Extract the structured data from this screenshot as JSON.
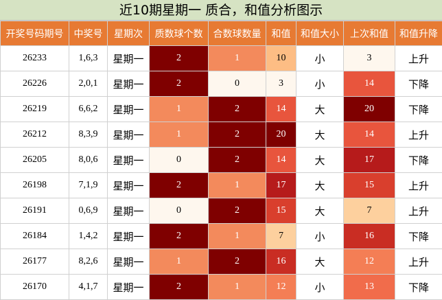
{
  "title": "近10期星期一 质合，和值分析图示",
  "headers": [
    "开奖号码期号",
    "中奖号",
    "星期次",
    "质数球个数",
    "合数球数量",
    "和值",
    "和值大小",
    "上次和值",
    "和值升降"
  ],
  "rows": [
    {
      "issue": "26233",
      "nums": "1,6,3",
      "weekday": "星期一",
      "prime": "2",
      "composite": "1",
      "sum": "10",
      "size": "小",
      "prev_sum": "3",
      "trend": "上升"
    },
    {
      "issue": "26226",
      "nums": "2,0,1",
      "weekday": "星期一",
      "prime": "2",
      "composite": "0",
      "sum": "3",
      "size": "小",
      "prev_sum": "14",
      "trend": "下降"
    },
    {
      "issue": "26219",
      "nums": "6,6,2",
      "weekday": "星期一",
      "prime": "1",
      "composite": "2",
      "sum": "14",
      "size": "大",
      "prev_sum": "20",
      "trend": "下降"
    },
    {
      "issue": "26212",
      "nums": "8,3,9",
      "weekday": "星期一",
      "prime": "1",
      "composite": "2",
      "sum": "20",
      "size": "大",
      "prev_sum": "14",
      "trend": "上升"
    },
    {
      "issue": "26205",
      "nums": "8,0,6",
      "weekday": "星期一",
      "prime": "0",
      "composite": "2",
      "sum": "14",
      "size": "大",
      "prev_sum": "17",
      "trend": "下降"
    },
    {
      "issue": "26198",
      "nums": "7,1,9",
      "weekday": "星期一",
      "prime": "2",
      "composite": "1",
      "sum": "17",
      "size": "大",
      "prev_sum": "15",
      "trend": "上升"
    },
    {
      "issue": "26191",
      "nums": "0,6,9",
      "weekday": "星期一",
      "prime": "0",
      "composite": "2",
      "sum": "15",
      "size": "大",
      "prev_sum": "7",
      "trend": "上升"
    },
    {
      "issue": "26184",
      "nums": "1,4,2",
      "weekday": "星期一",
      "prime": "2",
      "composite": "1",
      "sum": "7",
      "size": "小",
      "prev_sum": "16",
      "trend": "下降"
    },
    {
      "issue": "26177",
      "nums": "8,2,6",
      "weekday": "星期一",
      "prime": "1",
      "composite": "2",
      "sum": "16",
      "size": "大",
      "prev_sum": "12",
      "trend": "上升"
    },
    {
      "issue": "26170",
      "nums": "4,1,7",
      "weekday": "星期一",
      "prime": "2",
      "composite": "1",
      "sum": "12",
      "size": "小",
      "prev_sum": "13",
      "trend": "下降"
    }
  ],
  "colors": {
    "count": {
      "0": "#fef7ee",
      "1": "#f38a5c",
      "2": "#7f0000"
    },
    "sum": {
      "3": "#fef7ee",
      "7": "#fdd09e",
      "10": "#fdbd84",
      "12": "#f47e55",
      "13": "#f16c4b",
      "14": "#e8553d",
      "15": "#d93f2d",
      "16": "#c92d23",
      "17": "#b61b1b",
      "20": "#7f0000"
    }
  }
}
